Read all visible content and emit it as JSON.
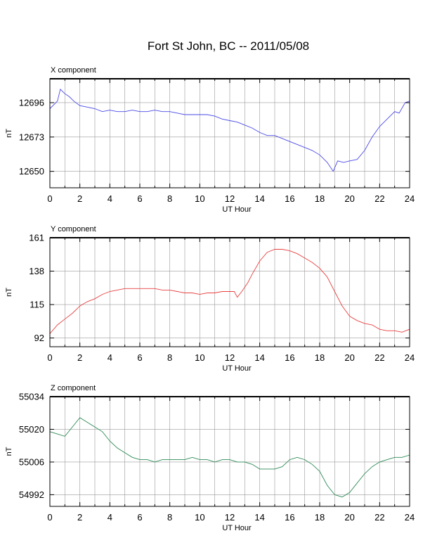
{
  "title": "Fort St John, BC -- 2011/05/08",
  "chart_data": [
    {
      "type": "line",
      "panel_label": "X component",
      "xlabel": "UT Hour",
      "ylabel": "nT",
      "xlim": [
        0,
        24
      ],
      "ylim": [
        12639,
        12712
      ],
      "xticks": [
        0,
        2,
        4,
        6,
        8,
        10,
        12,
        14,
        16,
        18,
        20,
        22,
        24
      ],
      "yticks": [
        12650,
        12673,
        12696
      ],
      "grid": true,
      "color": "#4a4ae6",
      "x": [
        0,
        0.5,
        0.7,
        1,
        1.3,
        1.6,
        2,
        2.5,
        3,
        3.5,
        4,
        4.5,
        5,
        5.5,
        6,
        6.5,
        7,
        7.5,
        8,
        8.5,
        9,
        9.5,
        10,
        10.5,
        11,
        11.5,
        12,
        12.5,
        13,
        13.5,
        14,
        14.5,
        15,
        15.5,
        16,
        16.5,
        17,
        17.5,
        18,
        18.5,
        18.9,
        19.2,
        19.6,
        20,
        20.5,
        21,
        21.5,
        22,
        22.5,
        23,
        23.3,
        23.7,
        24
      ],
      "y": [
        12692,
        12697,
        12705,
        12702,
        12700,
        12697,
        12694,
        12693,
        12692,
        12690,
        12691,
        12690,
        12690,
        12691,
        12690,
        12690,
        12691,
        12690,
        12690,
        12689,
        12688,
        12688,
        12688,
        12688,
        12687,
        12685,
        12684,
        12683,
        12681,
        12679,
        12676,
        12674,
        12674,
        12672,
        12670,
        12668,
        12666,
        12664,
        12661,
        12656,
        12650,
        12657,
        12656,
        12657,
        12658,
        12664,
        12673,
        12680,
        12685,
        12690,
        12689,
        12696,
        12697
      ]
    },
    {
      "type": "line",
      "panel_label": "Y component",
      "xlabel": "UT Hour",
      "ylabel": "nT",
      "xlim": [
        0,
        24
      ],
      "ylim": [
        86,
        161
      ],
      "xticks": [
        0,
        2,
        4,
        6,
        8,
        10,
        12,
        14,
        16,
        18,
        20,
        22,
        24
      ],
      "yticks": [
        92,
        115,
        138,
        161
      ],
      "grid": true,
      "color": "#e84040",
      "x": [
        0,
        0.5,
        1,
        1.5,
        2,
        2.5,
        3,
        3.5,
        4,
        4.5,
        5,
        5.5,
        6,
        6.5,
        7,
        7.5,
        8,
        8.5,
        9,
        9.5,
        10,
        10.5,
        11,
        11.5,
        12,
        12.3,
        12.5,
        12.8,
        13.2,
        13.5,
        14,
        14.5,
        15,
        15.5,
        16,
        16.5,
        17,
        17.5,
        18,
        18.5,
        19,
        19.5,
        20,
        20.5,
        21,
        21.5,
        22,
        22.5,
        23,
        23.5,
        24
      ],
      "y": [
        95,
        101,
        105,
        109,
        114,
        117,
        119,
        122,
        124,
        125,
        126,
        126,
        126,
        126,
        126,
        125,
        125,
        124,
        123,
        123,
        122,
        123,
        123,
        124,
        124,
        124,
        120,
        124,
        130,
        136,
        145,
        151,
        153,
        153,
        152,
        150,
        147,
        144,
        140,
        134,
        124,
        114,
        107,
        104,
        102,
        101,
        98,
        97,
        97,
        96,
        98
      ]
    },
    {
      "type": "line",
      "panel_label": "Z component",
      "xlabel": "UT Hour",
      "ylabel": "nT",
      "xlim": [
        0,
        24
      ],
      "ylim": [
        54987,
        55034
      ],
      "xticks": [
        0,
        2,
        4,
        6,
        8,
        10,
        12,
        14,
        16,
        18,
        20,
        22,
        24
      ],
      "yticks": [
        54992,
        55006,
        55020,
        55034
      ],
      "grid": true,
      "color": "#2e8b57",
      "x": [
        0,
        0.5,
        1,
        1.5,
        2,
        2.5,
        3,
        3.5,
        4,
        4.5,
        5,
        5.5,
        6,
        6.5,
        7,
        7.5,
        8,
        8.5,
        9,
        9.5,
        10,
        10.5,
        11,
        11.5,
        12,
        12.5,
        13,
        13.5,
        14,
        14.5,
        15,
        15.5,
        16,
        16.5,
        17,
        17.5,
        18,
        18.5,
        19,
        19.5,
        20,
        20.5,
        21,
        21.5,
        22,
        22.5,
        23,
        23.5,
        24
      ],
      "y": [
        55019,
        55018,
        55017,
        55021,
        55025,
        55023,
        55021,
        55019,
        55015,
        55012,
        55010,
        55008,
        55007,
        55007,
        55006,
        55007,
        55007,
        55007,
        55007,
        55008,
        55007,
        55007,
        55006,
        55007,
        55007,
        55006,
        55006,
        55005,
        55003,
        55003,
        55003,
        55004,
        55007,
        55008,
        55007,
        55005,
        55002,
        54996,
        54992,
        54991,
        54993,
        54997,
        55001,
        55004,
        55006,
        55007,
        55008,
        55008,
        55009
      ]
    }
  ]
}
